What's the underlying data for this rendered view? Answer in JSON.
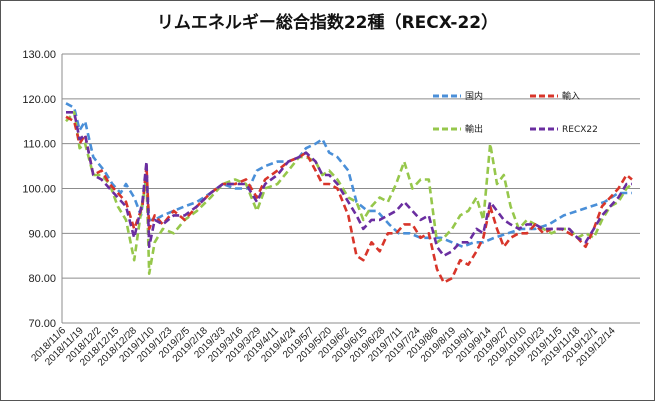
{
  "chart_data": {
    "type": "line",
    "title": "リムエネルギー総合指数22種（RECX-22）",
    "xlabel": "",
    "ylabel": "",
    "ylim": [
      70,
      130
    ],
    "yticks": [
      "70.00",
      "80.00",
      "90.00",
      "100.00",
      "110.00",
      "120.00",
      "130.00"
    ],
    "grid": "horizontal",
    "legend_position": "top-right",
    "x_tick_labels": [
      "2018/11/6",
      "2018/11/19",
      "2018/12/2",
      "2018/12/15",
      "2018/12/28",
      "2019/1/10",
      "2019/1/23",
      "2019/2/5",
      "2019/2/18",
      "2019/3/3",
      "2019/3/16",
      "2019/3/29",
      "2019/4/11",
      "2019/4/24",
      "2019/5/7",
      "2019/5/20",
      "2019/6/2",
      "2019/6/15",
      "2019/6/28",
      "2019/7/11",
      "2019/7/24",
      "2019/8/6",
      "2019/8/19",
      "2019/9/1",
      "2019/9/14",
      "2019/9/27",
      "2019/10/10",
      "2019/10/23",
      "2019/11/5",
      "2019/11/18",
      "2019/12/1",
      "2019/12/14"
    ],
    "x_start": "2018-11-06",
    "x_end": "2019-12-26",
    "series": [
      {
        "name": "国内",
        "color": "#4a8fd8",
        "points": [
          [
            "2018-11-06",
            119
          ],
          [
            "2018-11-12",
            118
          ],
          [
            "2018-11-16",
            113
          ],
          [
            "2018-11-20",
            115
          ],
          [
            "2018-11-26",
            107
          ],
          [
            "2018-12-04",
            104
          ],
          [
            "2018-12-10",
            101
          ],
          [
            "2018-12-16",
            99
          ],
          [
            "2018-12-20",
            101
          ],
          [
            "2018-12-26",
            98
          ],
          [
            "2018-12-31",
            94
          ],
          [
            "2019-01-04",
            103
          ],
          [
            "2019-01-06",
            93
          ],
          [
            "2019-01-10",
            93
          ],
          [
            "2019-01-16",
            94
          ],
          [
            "2019-01-24",
            95
          ],
          [
            "2019-02-01",
            96
          ],
          [
            "2019-02-10",
            97
          ],
          [
            "2019-02-20",
            99
          ],
          [
            "2019-03-01",
            101
          ],
          [
            "2019-03-10",
            100
          ],
          [
            "2019-03-20",
            100
          ],
          [
            "2019-03-26",
            104
          ],
          [
            "2019-04-01",
            105
          ],
          [
            "2019-04-10",
            106
          ],
          [
            "2019-04-18",
            106
          ],
          [
            "2019-04-26",
            107
          ],
          [
            "2019-05-01",
            109
          ],
          [
            "2019-05-08",
            110
          ],
          [
            "2019-05-13",
            111
          ],
          [
            "2019-05-18",
            108
          ],
          [
            "2019-05-24",
            107
          ],
          [
            "2019-06-01",
            104
          ],
          [
            "2019-06-07",
            97
          ],
          [
            "2019-06-15",
            95
          ],
          [
            "2019-06-22",
            95
          ],
          [
            "2019-07-01",
            92
          ],
          [
            "2019-07-08",
            90
          ],
          [
            "2019-07-16",
            90
          ],
          [
            "2019-07-24",
            89
          ],
          [
            "2019-08-01",
            89
          ],
          [
            "2019-08-08",
            89
          ],
          [
            "2019-08-16",
            88
          ],
          [
            "2019-08-24",
            87
          ],
          [
            "2019-09-01",
            88
          ],
          [
            "2019-09-08",
            88
          ],
          [
            "2019-09-16",
            89
          ],
          [
            "2019-09-26",
            90
          ],
          [
            "2019-10-06",
            91
          ],
          [
            "2019-10-16",
            91
          ],
          [
            "2019-10-26",
            92
          ],
          [
            "2019-11-06",
            94
          ],
          [
            "2019-11-16",
            95
          ],
          [
            "2019-11-26",
            96
          ],
          [
            "2019-12-06",
            97
          ],
          [
            "2019-12-16",
            99
          ],
          [
            "2019-12-26",
            99
          ]
        ]
      },
      {
        "name": "輸入",
        "color": "#d8352a",
        "points": [
          [
            "2018-11-06",
            116
          ],
          [
            "2018-11-12",
            115
          ],
          [
            "2018-11-16",
            110
          ],
          [
            "2018-11-20",
            112
          ],
          [
            "2018-11-26",
            103
          ],
          [
            "2018-12-02",
            104
          ],
          [
            "2018-12-08",
            101
          ],
          [
            "2018-12-14",
            99
          ],
          [
            "2018-12-20",
            97
          ],
          [
            "2018-12-26",
            91
          ],
          [
            "2019-01-01",
            96
          ],
          [
            "2019-01-04",
            105
          ],
          [
            "2019-01-06",
            91
          ],
          [
            "2019-01-10",
            94
          ],
          [
            "2019-01-16",
            92
          ],
          [
            "2019-01-24",
            95
          ],
          [
            "2019-02-01",
            93
          ],
          [
            "2019-02-10",
            96
          ],
          [
            "2019-02-20",
            99
          ],
          [
            "2019-03-01",
            101
          ],
          [
            "2019-03-10",
            101
          ],
          [
            "2019-03-18",
            102
          ],
          [
            "2019-03-26",
            98
          ],
          [
            "2019-04-01",
            102
          ],
          [
            "2019-04-10",
            104
          ],
          [
            "2019-04-18",
            106
          ],
          [
            "2019-04-26",
            107
          ],
          [
            "2019-05-01",
            108
          ],
          [
            "2019-05-08",
            104
          ],
          [
            "2019-05-13",
            101
          ],
          [
            "2019-05-18",
            101
          ],
          [
            "2019-05-24",
            100
          ],
          [
            "2019-06-01",
            94
          ],
          [
            "2019-06-07",
            85
          ],
          [
            "2019-06-12",
            84
          ],
          [
            "2019-06-18",
            88
          ],
          [
            "2019-06-24",
            86
          ],
          [
            "2019-06-30",
            90
          ],
          [
            "2019-07-06",
            90
          ],
          [
            "2019-07-12",
            92
          ],
          [
            "2019-07-18",
            92
          ],
          [
            "2019-07-24",
            89
          ],
          [
            "2019-07-30",
            90
          ],
          [
            "2019-08-05",
            82
          ],
          [
            "2019-08-10",
            79
          ],
          [
            "2019-08-16",
            80
          ],
          [
            "2019-08-22",
            84
          ],
          [
            "2019-08-28",
            83
          ],
          [
            "2019-09-03",
            86
          ],
          [
            "2019-09-08",
            89
          ],
          [
            "2019-09-13",
            96
          ],
          [
            "2019-09-18",
            91
          ],
          [
            "2019-09-23",
            87
          ],
          [
            "2019-09-28",
            89
          ],
          [
            "2019-10-04",
            90
          ],
          [
            "2019-10-10",
            90
          ],
          [
            "2019-10-16",
            92
          ],
          [
            "2019-10-22",
            90
          ],
          [
            "2019-10-28",
            91
          ],
          [
            "2019-11-04",
            91
          ],
          [
            "2019-11-10",
            90
          ],
          [
            "2019-11-16",
            89
          ],
          [
            "2019-11-22",
            87
          ],
          [
            "2019-11-28",
            91
          ],
          [
            "2019-12-04",
            96
          ],
          [
            "2019-12-10",
            98
          ],
          [
            "2019-12-16",
            100
          ],
          [
            "2019-12-22",
            103
          ],
          [
            "2019-12-26",
            102
          ]
        ]
      },
      {
        "name": "輸出",
        "color": "#96c74b",
        "points": [
          [
            "2018-11-06",
            115
          ],
          [
            "2018-11-12",
            117
          ],
          [
            "2018-11-16",
            109
          ],
          [
            "2018-11-20",
            110
          ],
          [
            "2018-11-26",
            103
          ],
          [
            "2018-12-02",
            103
          ],
          [
            "2018-12-08",
            101
          ],
          [
            "2018-12-14",
            96
          ],
          [
            "2018-12-20",
            93
          ],
          [
            "2018-12-26",
            84
          ],
          [
            "2019-01-01",
            97
          ],
          [
            "2019-01-04",
            102
          ],
          [
            "2019-01-06",
            81
          ],
          [
            "2019-01-10",
            88
          ],
          [
            "2019-01-16",
            91
          ],
          [
            "2019-01-24",
            90
          ],
          [
            "2019-02-01",
            93
          ],
          [
            "2019-02-10",
            95
          ],
          [
            "2019-02-20",
            98
          ],
          [
            "2019-03-01",
            101
          ],
          [
            "2019-03-10",
            102
          ],
          [
            "2019-03-18",
            101
          ],
          [
            "2019-03-26",
            95
          ],
          [
            "2019-04-01",
            100
          ],
          [
            "2019-04-10",
            101
          ],
          [
            "2019-04-18",
            104
          ],
          [
            "2019-04-26",
            107
          ],
          [
            "2019-05-01",
            107
          ],
          [
            "2019-05-08",
            106
          ],
          [
            "2019-05-13",
            103
          ],
          [
            "2019-05-18",
            104
          ],
          [
            "2019-05-24",
            102
          ],
          [
            "2019-06-01",
            98
          ],
          [
            "2019-06-07",
            97
          ],
          [
            "2019-06-12",
            93
          ],
          [
            "2019-06-18",
            96
          ],
          [
            "2019-06-24",
            98
          ],
          [
            "2019-06-30",
            97
          ],
          [
            "2019-07-06",
            101
          ],
          [
            "2019-07-12",
            106
          ],
          [
            "2019-07-18",
            100
          ],
          [
            "2019-07-24",
            102
          ],
          [
            "2019-07-30",
            102
          ],
          [
            "2019-08-05",
            88
          ],
          [
            "2019-08-10",
            89
          ],
          [
            "2019-08-16",
            91
          ],
          [
            "2019-08-22",
            94
          ],
          [
            "2019-08-28",
            95
          ],
          [
            "2019-09-03",
            98
          ],
          [
            "2019-09-08",
            93
          ],
          [
            "2019-09-13",
            110
          ],
          [
            "2019-09-18",
            101
          ],
          [
            "2019-09-23",
            103
          ],
          [
            "2019-09-28",
            96
          ],
          [
            "2019-10-04",
            91
          ],
          [
            "2019-10-10",
            93
          ],
          [
            "2019-10-16",
            92
          ],
          [
            "2019-10-22",
            91
          ],
          [
            "2019-10-28",
            90
          ],
          [
            "2019-11-04",
            91
          ],
          [
            "2019-11-10",
            91
          ],
          [
            "2019-11-16",
            89
          ],
          [
            "2019-11-22",
            90
          ],
          [
            "2019-11-28",
            89
          ],
          [
            "2019-12-04",
            93
          ],
          [
            "2019-12-10",
            96
          ],
          [
            "2019-12-16",
            97
          ],
          [
            "2019-12-22",
            100
          ],
          [
            "2019-12-26",
            101
          ]
        ]
      },
      {
        "name": "RECX22",
        "color": "#6a2ea0",
        "points": [
          [
            "2018-11-06",
            117
          ],
          [
            "2018-11-12",
            117
          ],
          [
            "2018-11-16",
            111
          ],
          [
            "2018-11-20",
            112
          ],
          [
            "2018-11-26",
            103
          ],
          [
            "2018-12-02",
            102
          ],
          [
            "2018-12-08",
            100
          ],
          [
            "2018-12-14",
            98
          ],
          [
            "2018-12-20",
            96
          ],
          [
            "2018-12-26",
            89
          ],
          [
            "2019-01-01",
            97
          ],
          [
            "2019-01-04",
            106
          ],
          [
            "2019-01-06",
            87
          ],
          [
            "2019-01-10",
            93
          ],
          [
            "2019-01-16",
            92
          ],
          [
            "2019-01-24",
            94
          ],
          [
            "2019-02-01",
            94
          ],
          [
            "2019-02-10",
            96
          ],
          [
            "2019-02-20",
            99
          ],
          [
            "2019-03-01",
            101
          ],
          [
            "2019-03-10",
            101
          ],
          [
            "2019-03-18",
            101
          ],
          [
            "2019-03-26",
            97
          ],
          [
            "2019-04-01",
            101
          ],
          [
            "2019-04-10",
            103
          ],
          [
            "2019-04-18",
            106
          ],
          [
            "2019-04-26",
            107
          ],
          [
            "2019-05-01",
            108
          ],
          [
            "2019-05-08",
            106
          ],
          [
            "2019-05-13",
            103
          ],
          [
            "2019-05-18",
            103
          ],
          [
            "2019-05-24",
            101
          ],
          [
            "2019-06-01",
            97
          ],
          [
            "2019-06-07",
            94
          ],
          [
            "2019-06-12",
            91
          ],
          [
            "2019-06-18",
            93
          ],
          [
            "2019-06-24",
            93
          ],
          [
            "2019-06-30",
            94
          ],
          [
            "2019-07-06",
            95
          ],
          [
            "2019-07-12",
            97
          ],
          [
            "2019-07-18",
            95
          ],
          [
            "2019-07-24",
            93
          ],
          [
            "2019-07-30",
            94
          ],
          [
            "2019-08-05",
            87
          ],
          [
            "2019-08-10",
            85
          ],
          [
            "2019-08-16",
            86
          ],
          [
            "2019-08-22",
            88
          ],
          [
            "2019-08-28",
            88
          ],
          [
            "2019-09-03",
            91
          ],
          [
            "2019-09-08",
            90
          ],
          [
            "2019-09-13",
            97
          ],
          [
            "2019-09-18",
            95
          ],
          [
            "2019-09-23",
            93
          ],
          [
            "2019-09-28",
            92
          ],
          [
            "2019-10-04",
            91
          ],
          [
            "2019-10-10",
            92
          ],
          [
            "2019-10-16",
            92
          ],
          [
            "2019-10-22",
            91
          ],
          [
            "2019-10-28",
            91
          ],
          [
            "2019-11-04",
            91
          ],
          [
            "2019-11-10",
            91
          ],
          [
            "2019-11-16",
            89
          ],
          [
            "2019-11-22",
            88
          ],
          [
            "2019-11-28",
            91
          ],
          [
            "2019-12-04",
            94
          ],
          [
            "2019-12-10",
            96
          ],
          [
            "2019-12-16",
            98
          ],
          [
            "2019-12-22",
            101
          ],
          [
            "2019-12-26",
            101
          ]
        ]
      }
    ]
  }
}
